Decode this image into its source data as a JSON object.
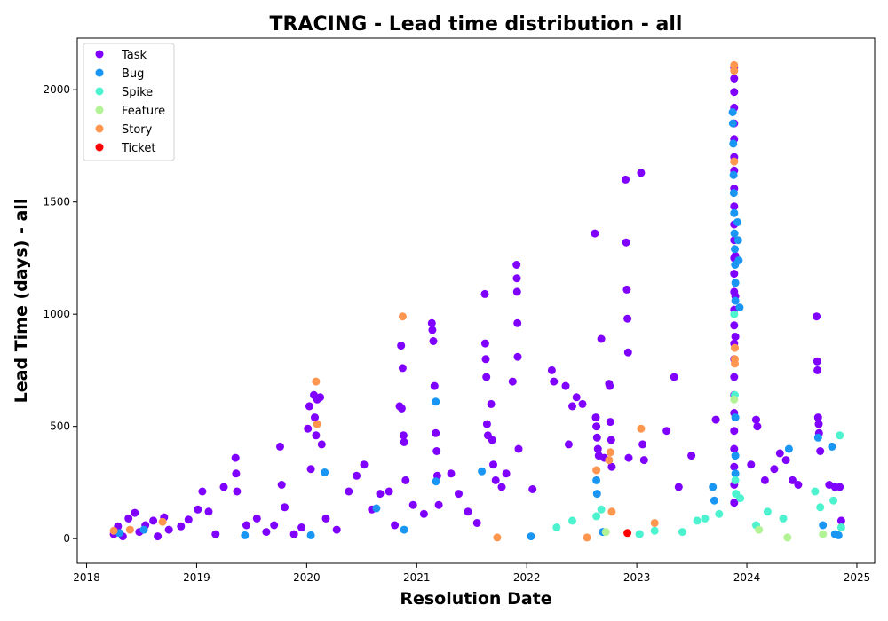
{
  "chart_data": {
    "type": "scatter",
    "title": "TRACING - Lead time distribution - all",
    "xlabel": "Resolution Date",
    "ylabel": "Lead Time (days) - all",
    "xlim": [
      "2017-12-01",
      "2025-03-01"
    ],
    "ylim": [
      -110,
      2230
    ],
    "x_ticks": [
      "2018",
      "2019",
      "2020",
      "2021",
      "2022",
      "2023",
      "2024",
      "2025"
    ],
    "y_ticks": [
      0,
      500,
      1000,
      1500,
      2000
    ],
    "grid": false,
    "legend_position": "top-left",
    "series": [
      {
        "name": "Task",
        "color": "#8000ff",
        "points": [
          [
            "2018-04-01",
            20
          ],
          [
            "2018-04-15",
            55
          ],
          [
            "2018-05-01",
            10
          ],
          [
            "2018-05-20",
            90
          ],
          [
            "2018-06-10",
            115
          ],
          [
            "2018-06-25",
            30
          ],
          [
            "2018-07-15",
            60
          ],
          [
            "2018-08-10",
            80
          ],
          [
            "2018-08-25",
            10
          ],
          [
            "2018-09-15",
            95
          ],
          [
            "2018-10-01",
            40
          ],
          [
            "2018-11-10",
            55
          ],
          [
            "2018-12-05",
            85
          ],
          [
            "2019-01-05",
            130
          ],
          [
            "2019-01-20",
            210
          ],
          [
            "2019-02-10",
            120
          ],
          [
            "2019-03-05",
            20
          ],
          [
            "2019-04-01",
            230
          ],
          [
            "2019-05-10",
            360
          ],
          [
            "2019-05-12",
            290
          ],
          [
            "2019-05-15",
            210
          ],
          [
            "2019-06-15",
            60
          ],
          [
            "2019-07-20",
            90
          ],
          [
            "2019-08-20",
            30
          ],
          [
            "2019-09-15",
            60
          ],
          [
            "2019-10-05",
            410
          ],
          [
            "2019-10-10",
            240
          ],
          [
            "2019-10-20",
            140
          ],
          [
            "2019-11-20",
            20
          ],
          [
            "2019-12-15",
            50
          ],
          [
            "2020-01-05",
            490
          ],
          [
            "2020-01-10",
            590
          ],
          [
            "2020-01-15",
            310
          ],
          [
            "2020-01-25",
            640
          ],
          [
            "2020-01-28",
            540
          ],
          [
            "2020-02-01",
            460
          ],
          [
            "2020-02-05",
            620
          ],
          [
            "2020-02-15",
            630
          ],
          [
            "2020-02-20",
            420
          ],
          [
            "2020-03-05",
            90
          ],
          [
            "2020-04-10",
            40
          ],
          [
            "2020-05-20",
            210
          ],
          [
            "2020-06-15",
            280
          ],
          [
            "2020-07-10",
            330
          ],
          [
            "2020-08-05",
            130
          ],
          [
            "2020-09-01",
            200
          ],
          [
            "2020-10-01",
            210
          ],
          [
            "2020-10-20",
            60
          ],
          [
            "2020-11-05",
            590
          ],
          [
            "2020-11-10",
            860
          ],
          [
            "2020-11-12",
            580
          ],
          [
            "2020-11-15",
            760
          ],
          [
            "2020-11-18",
            460
          ],
          [
            "2020-11-20",
            430
          ],
          [
            "2020-11-25",
            260
          ],
          [
            "2020-12-20",
            150
          ],
          [
            "2021-01-25",
            110
          ],
          [
            "2021-02-20",
            960
          ],
          [
            "2021-02-22",
            930
          ],
          [
            "2021-02-25",
            880
          ],
          [
            "2021-03-01",
            680
          ],
          [
            "2021-03-05",
            470
          ],
          [
            "2021-03-08",
            390
          ],
          [
            "2021-03-10",
            280
          ],
          [
            "2021-03-15",
            150
          ],
          [
            "2021-04-25",
            290
          ],
          [
            "2021-05-20",
            200
          ],
          [
            "2021-06-20",
            120
          ],
          [
            "2021-07-20",
            70
          ],
          [
            "2021-08-15",
            1090
          ],
          [
            "2021-08-16",
            870
          ],
          [
            "2021-08-18",
            800
          ],
          [
            "2021-08-20",
            720
          ],
          [
            "2021-08-22",
            510
          ],
          [
            "2021-08-25",
            460
          ],
          [
            "2021-09-05",
            600
          ],
          [
            "2021-09-08",
            440
          ],
          [
            "2021-09-12",
            330
          ],
          [
            "2021-09-20",
            260
          ],
          [
            "2021-10-10",
            230
          ],
          [
            "2021-10-25",
            290
          ],
          [
            "2021-11-15",
            700
          ],
          [
            "2021-11-28",
            1220
          ],
          [
            "2021-11-29",
            1160
          ],
          [
            "2021-11-30",
            1100
          ],
          [
            "2021-12-01",
            960
          ],
          [
            "2021-12-02",
            810
          ],
          [
            "2021-12-05",
            400
          ],
          [
            "2022-01-20",
            220
          ],
          [
            "2022-03-25",
            750
          ],
          [
            "2022-04-01",
            700
          ],
          [
            "2022-05-10",
            680
          ],
          [
            "2022-05-20",
            420
          ],
          [
            "2022-06-01",
            590
          ],
          [
            "2022-06-15",
            630
          ],
          [
            "2022-07-05",
            600
          ],
          [
            "2022-08-15",
            1360
          ],
          [
            "2022-08-18",
            540
          ],
          [
            "2022-08-20",
            500
          ],
          [
            "2022-08-22",
            450
          ],
          [
            "2022-08-25",
            400
          ],
          [
            "2022-08-28",
            370
          ],
          [
            "2022-09-05",
            890
          ],
          [
            "2022-09-15",
            360
          ],
          [
            "2022-10-01",
            690
          ],
          [
            "2022-10-03",
            680
          ],
          [
            "2022-10-05",
            520
          ],
          [
            "2022-10-08",
            440
          ],
          [
            "2022-10-10",
            320
          ],
          [
            "2022-11-25",
            1600
          ],
          [
            "2022-11-27",
            1320
          ],
          [
            "2022-11-29",
            1110
          ],
          [
            "2022-12-01",
            980
          ],
          [
            "2022-12-03",
            830
          ],
          [
            "2022-12-05",
            360
          ],
          [
            "2023-01-15",
            1630
          ],
          [
            "2023-01-20",
            420
          ],
          [
            "2023-01-25",
            350
          ],
          [
            "2023-04-10",
            480
          ],
          [
            "2023-05-05",
            720
          ],
          [
            "2023-05-20",
            230
          ],
          [
            "2023-07-01",
            370
          ],
          [
            "2023-09-20",
            530
          ],
          [
            "2023-11-20",
            2100
          ],
          [
            "2023-11-20",
            2050
          ],
          [
            "2023-11-20",
            1990
          ],
          [
            "2023-11-20",
            1920
          ],
          [
            "2023-11-20",
            1850
          ],
          [
            "2023-11-20",
            1780
          ],
          [
            "2023-11-20",
            1700
          ],
          [
            "2023-11-20",
            1640
          ],
          [
            "2023-11-20",
            1560
          ],
          [
            "2023-11-20",
            1480
          ],
          [
            "2023-11-20",
            1400
          ],
          [
            "2023-11-20",
            1330
          ],
          [
            "2023-11-20",
            1250
          ],
          [
            "2023-11-20",
            1180
          ],
          [
            "2023-11-20",
            1100
          ],
          [
            "2023-11-20",
            1020
          ],
          [
            "2023-11-20",
            950
          ],
          [
            "2023-11-20",
            870
          ],
          [
            "2023-11-20",
            800
          ],
          [
            "2023-11-20",
            720
          ],
          [
            "2023-11-20",
            640
          ],
          [
            "2023-11-20",
            560
          ],
          [
            "2023-11-20",
            480
          ],
          [
            "2023-11-20",
            400
          ],
          [
            "2023-11-20",
            320
          ],
          [
            "2023-11-20",
            240
          ],
          [
            "2023-11-20",
            160
          ],
          [
            "2023-11-24",
            1260
          ],
          [
            "2023-11-24",
            1080
          ],
          [
            "2023-11-24",
            900
          ],
          [
            "2024-01-15",
            330
          ],
          [
            "2024-02-01",
            530
          ],
          [
            "2024-02-05",
            500
          ],
          [
            "2024-03-01",
            260
          ],
          [
            "2024-04-01",
            310
          ],
          [
            "2024-04-20",
            380
          ],
          [
            "2024-05-10",
            350
          ],
          [
            "2024-06-01",
            260
          ],
          [
            "2024-06-20",
            240
          ],
          [
            "2024-08-20",
            990
          ],
          [
            "2024-08-22",
            790
          ],
          [
            "2024-08-23",
            750
          ],
          [
            "2024-08-25",
            540
          ],
          [
            "2024-08-27",
            510
          ],
          [
            "2024-08-28",
            470
          ],
          [
            "2024-09-01",
            390
          ],
          [
            "2024-10-01",
            240
          ],
          [
            "2024-10-20",
            230
          ],
          [
            "2024-11-05",
            230
          ],
          [
            "2024-11-10",
            80
          ]
        ]
      },
      {
        "name": "Bug",
        "color": "#1996f3",
        "points": [
          [
            "2018-04-20",
            25
          ],
          [
            "2018-07-10",
            40
          ],
          [
            "2019-06-10",
            15
          ],
          [
            "2020-01-15",
            15
          ],
          [
            "2020-03-01",
            295
          ],
          [
            "2020-08-20",
            135
          ],
          [
            "2020-11-20",
            40
          ],
          [
            "2021-03-05",
            610
          ],
          [
            "2021-03-06",
            255
          ],
          [
            "2021-08-05",
            300
          ],
          [
            "2022-01-15",
            10
          ],
          [
            "2022-08-20",
            260
          ],
          [
            "2022-08-22",
            200
          ],
          [
            "2022-09-10",
            30
          ],
          [
            "2023-01-10",
            20
          ],
          [
            "2023-09-10",
            230
          ],
          [
            "2023-09-15",
            170
          ],
          [
            "2023-11-15",
            1900
          ],
          [
            "2023-11-16",
            1850
          ],
          [
            "2023-11-17",
            1760
          ],
          [
            "2023-11-18",
            1620
          ],
          [
            "2023-11-19",
            1540
          ],
          [
            "2023-11-20",
            1450
          ],
          [
            "2023-11-21",
            1360
          ],
          [
            "2023-11-22",
            1290
          ],
          [
            "2023-11-23",
            1220
          ],
          [
            "2023-11-24",
            1140
          ],
          [
            "2023-11-24",
            1060
          ],
          [
            "2023-11-24",
            540
          ],
          [
            "2023-11-24",
            370
          ],
          [
            "2023-11-24",
            290
          ],
          [
            "2023-12-01",
            1410
          ],
          [
            "2023-12-03",
            1330
          ],
          [
            "2023-12-05",
            1240
          ],
          [
            "2023-12-08",
            1030
          ],
          [
            "2024-05-20",
            400
          ],
          [
            "2024-08-25",
            450
          ],
          [
            "2024-09-10",
            60
          ],
          [
            "2024-10-10",
            410
          ],
          [
            "2024-10-20",
            20
          ],
          [
            "2024-11-01",
            15
          ]
        ]
      },
      {
        "name": "Spike",
        "color": "#4df3ce",
        "points": [
          [
            "2022-04-10",
            50
          ],
          [
            "2022-06-01",
            80
          ],
          [
            "2022-08-20",
            100
          ],
          [
            "2022-09-05",
            130
          ],
          [
            "2023-01-10",
            20
          ],
          [
            "2023-03-01",
            35
          ],
          [
            "2023-06-01",
            30
          ],
          [
            "2023-07-20",
            80
          ],
          [
            "2023-08-15",
            90
          ],
          [
            "2023-10-01",
            110
          ],
          [
            "2023-11-20",
            1000
          ],
          [
            "2023-11-22",
            640
          ],
          [
            "2023-11-24",
            260
          ],
          [
            "2023-11-26",
            200
          ],
          [
            "2023-12-10",
            180
          ],
          [
            "2024-02-01",
            60
          ],
          [
            "2024-03-10",
            120
          ],
          [
            "2024-05-01",
            90
          ],
          [
            "2024-08-15",
            210
          ],
          [
            "2024-09-01",
            140
          ],
          [
            "2024-10-15",
            170
          ],
          [
            "2024-11-05",
            460
          ],
          [
            "2024-11-10",
            50
          ]
        ]
      },
      {
        "name": "Feature",
        "color": "#b2f396",
        "points": [
          [
            "2022-09-20",
            30
          ],
          [
            "2023-11-20",
            620
          ],
          [
            "2024-02-10",
            40
          ],
          [
            "2024-05-15",
            5
          ],
          [
            "2024-09-10",
            20
          ]
        ]
      },
      {
        "name": "Story",
        "color": "#ff964f",
        "points": [
          [
            "2018-04-01",
            35
          ],
          [
            "2018-05-25",
            40
          ],
          [
            "2018-09-10",
            75
          ],
          [
            "2020-02-01",
            700
          ],
          [
            "2020-02-05",
            510
          ],
          [
            "2020-11-15",
            990
          ],
          [
            "2021-09-25",
            5
          ],
          [
            "2022-07-20",
            5
          ],
          [
            "2022-08-20",
            305
          ],
          [
            "2022-10-01",
            350
          ],
          [
            "2022-10-05",
            385
          ],
          [
            "2022-10-10",
            120
          ],
          [
            "2023-01-15",
            490
          ],
          [
            "2023-03-01",
            70
          ],
          [
            "2023-11-20",
            2110
          ],
          [
            "2023-11-20",
            2085
          ],
          [
            "2023-11-20",
            1680
          ],
          [
            "2023-11-22",
            850
          ],
          [
            "2023-11-22",
            800
          ],
          [
            "2023-11-22",
            780
          ]
        ]
      },
      {
        "name": "Ticket",
        "color": "#ff0000",
        "points": [
          [
            "2022-12-01",
            25
          ]
        ]
      }
    ]
  }
}
